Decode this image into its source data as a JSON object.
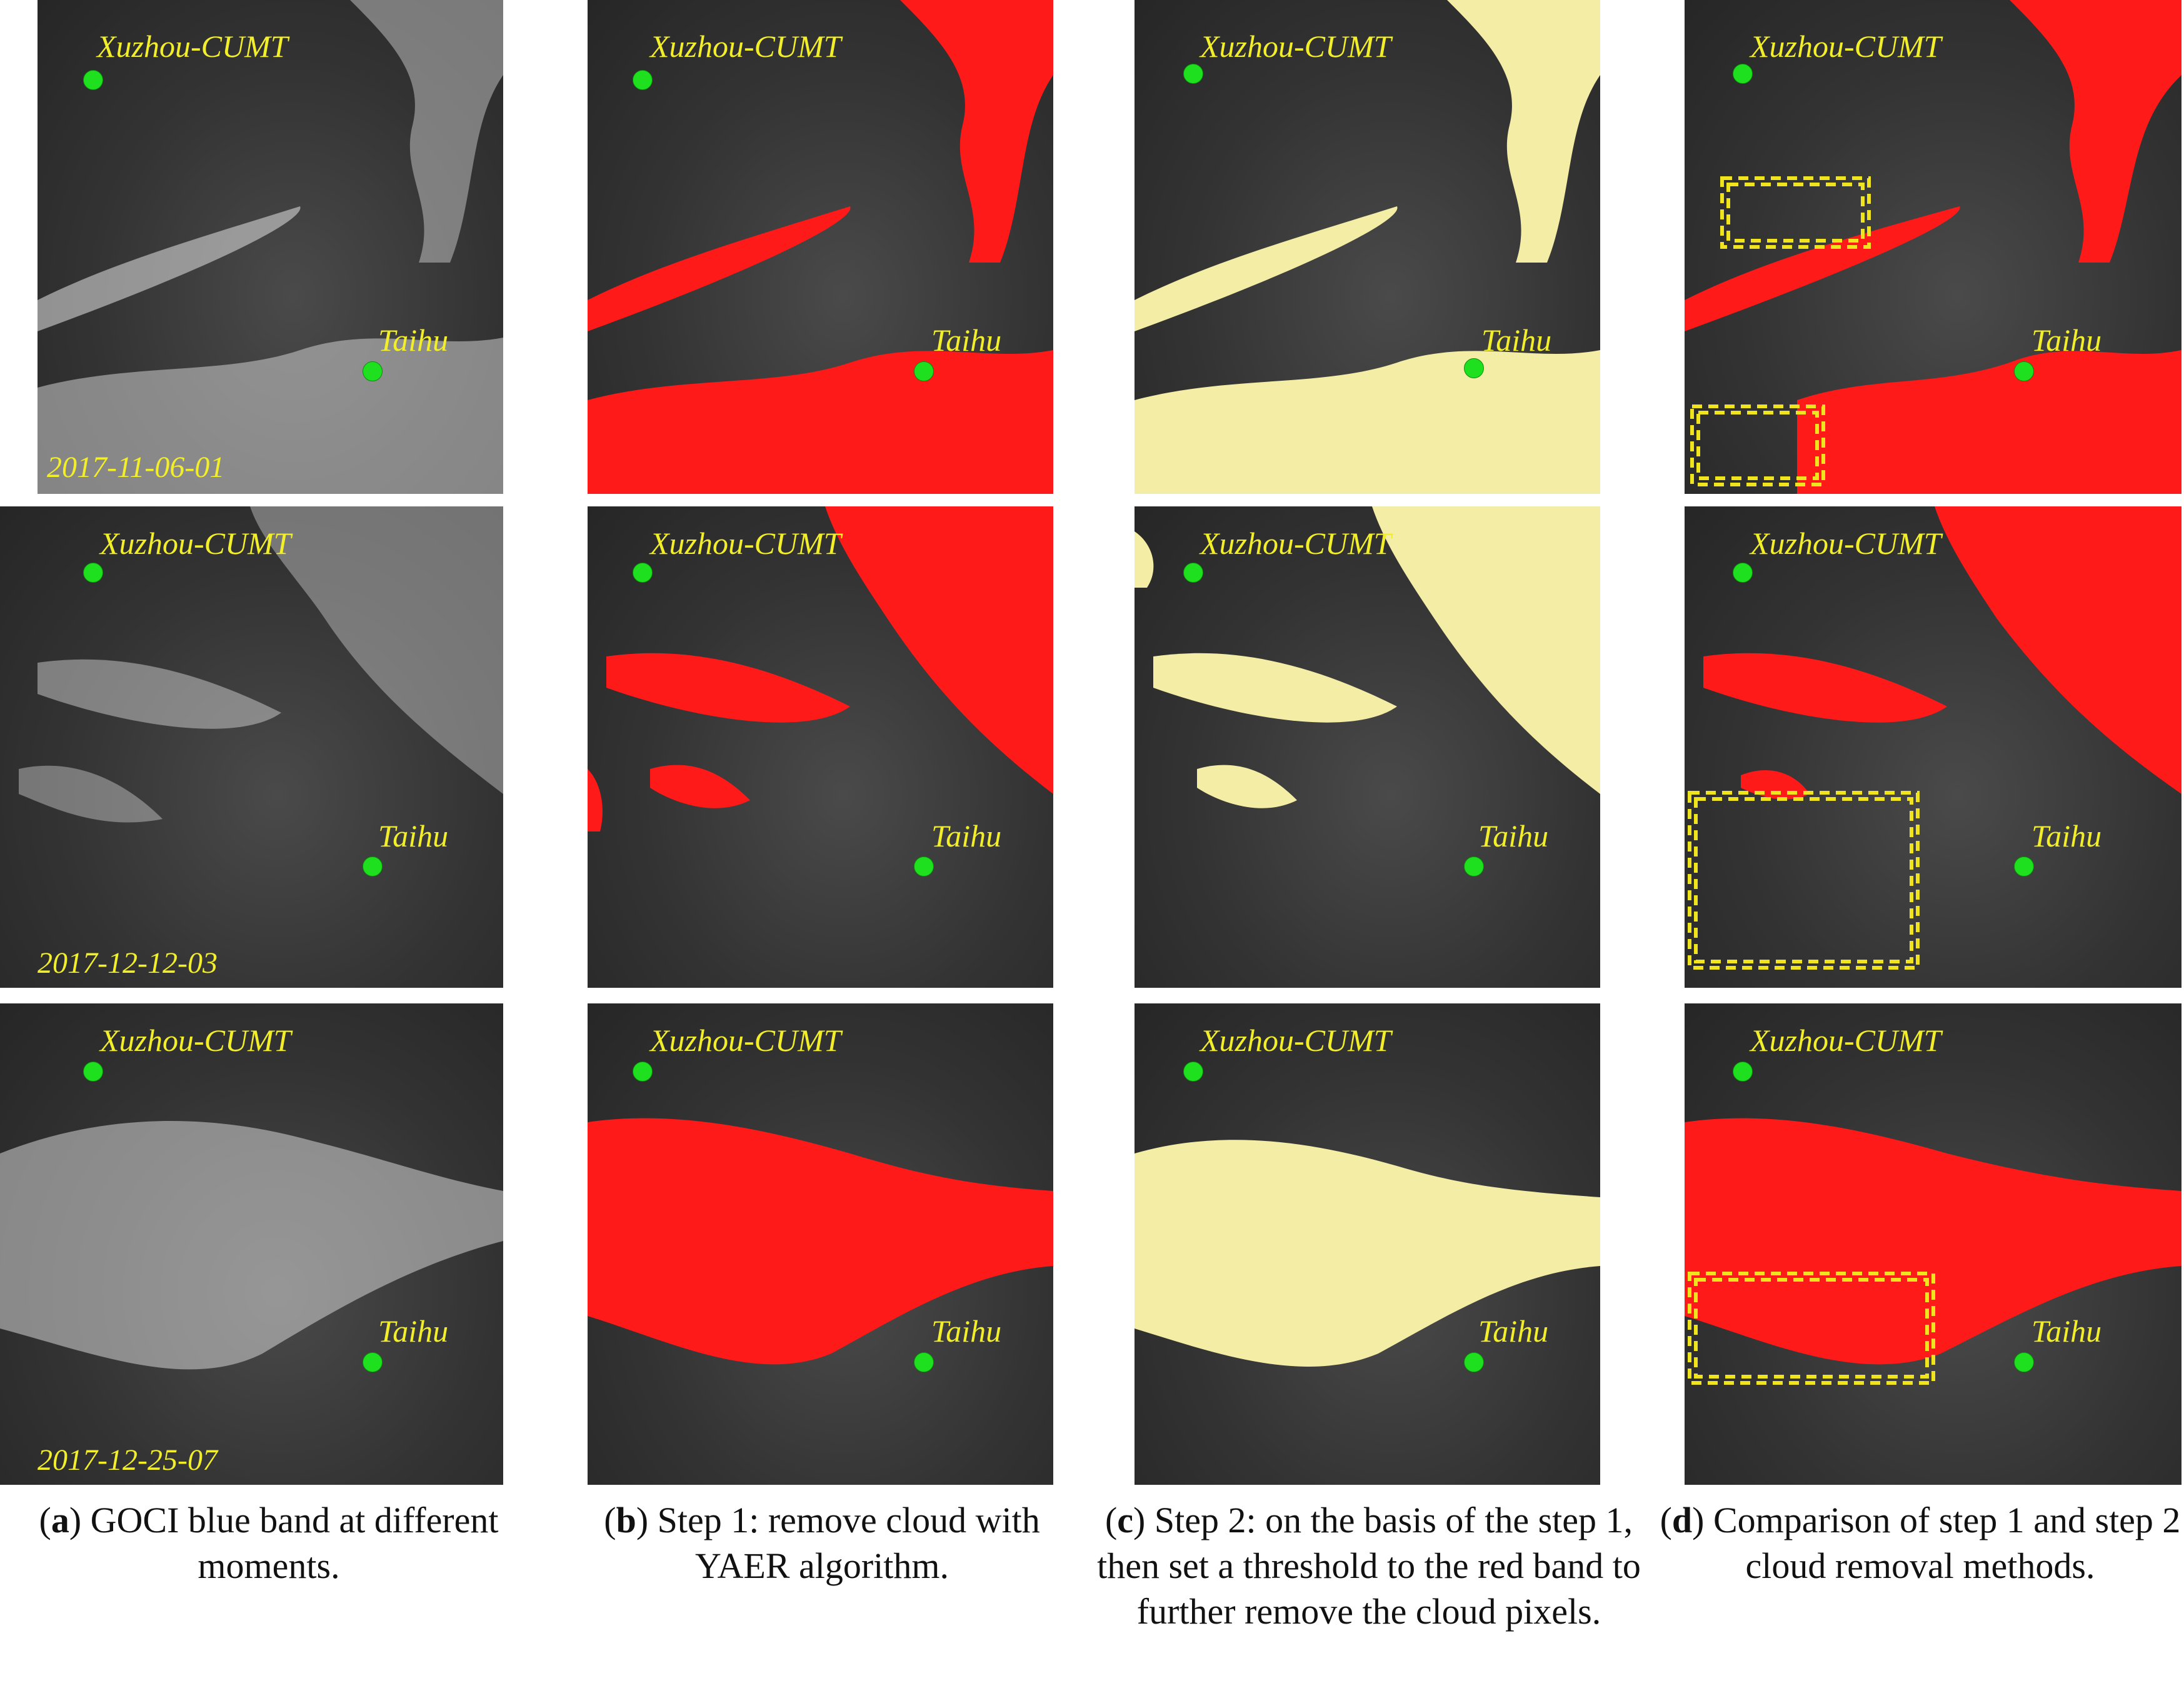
{
  "colors": {
    "step1_mask": "#ff1a1a",
    "step2_mask": "#f4eda6",
    "site_marker": "#1fe01f",
    "label_text": "#f2ee2a",
    "comparison_box": "#f0e41e"
  },
  "sites": {
    "north": "Xuzhou-CUMT",
    "south": "Taihu"
  },
  "rows": [
    {
      "date": "2017-11-06-01"
    },
    {
      "date": "2017-12-12-03"
    },
    {
      "date": "2017-12-25-07"
    }
  ],
  "captions": {
    "a": {
      "letter": "a",
      "text": ") GOCI blue band at different moments."
    },
    "b": {
      "letter": "b",
      "text": ") Step 1: remove cloud with YAER algorithm."
    },
    "c": {
      "letter": "c",
      "text": ") Step 2: on the basis of the step 1, then set a threshold to the red band to further remove the cloud pixels."
    },
    "d": {
      "letter": "d",
      "text": ") Comparison of step 1 and step 2 cloud removal methods."
    }
  }
}
